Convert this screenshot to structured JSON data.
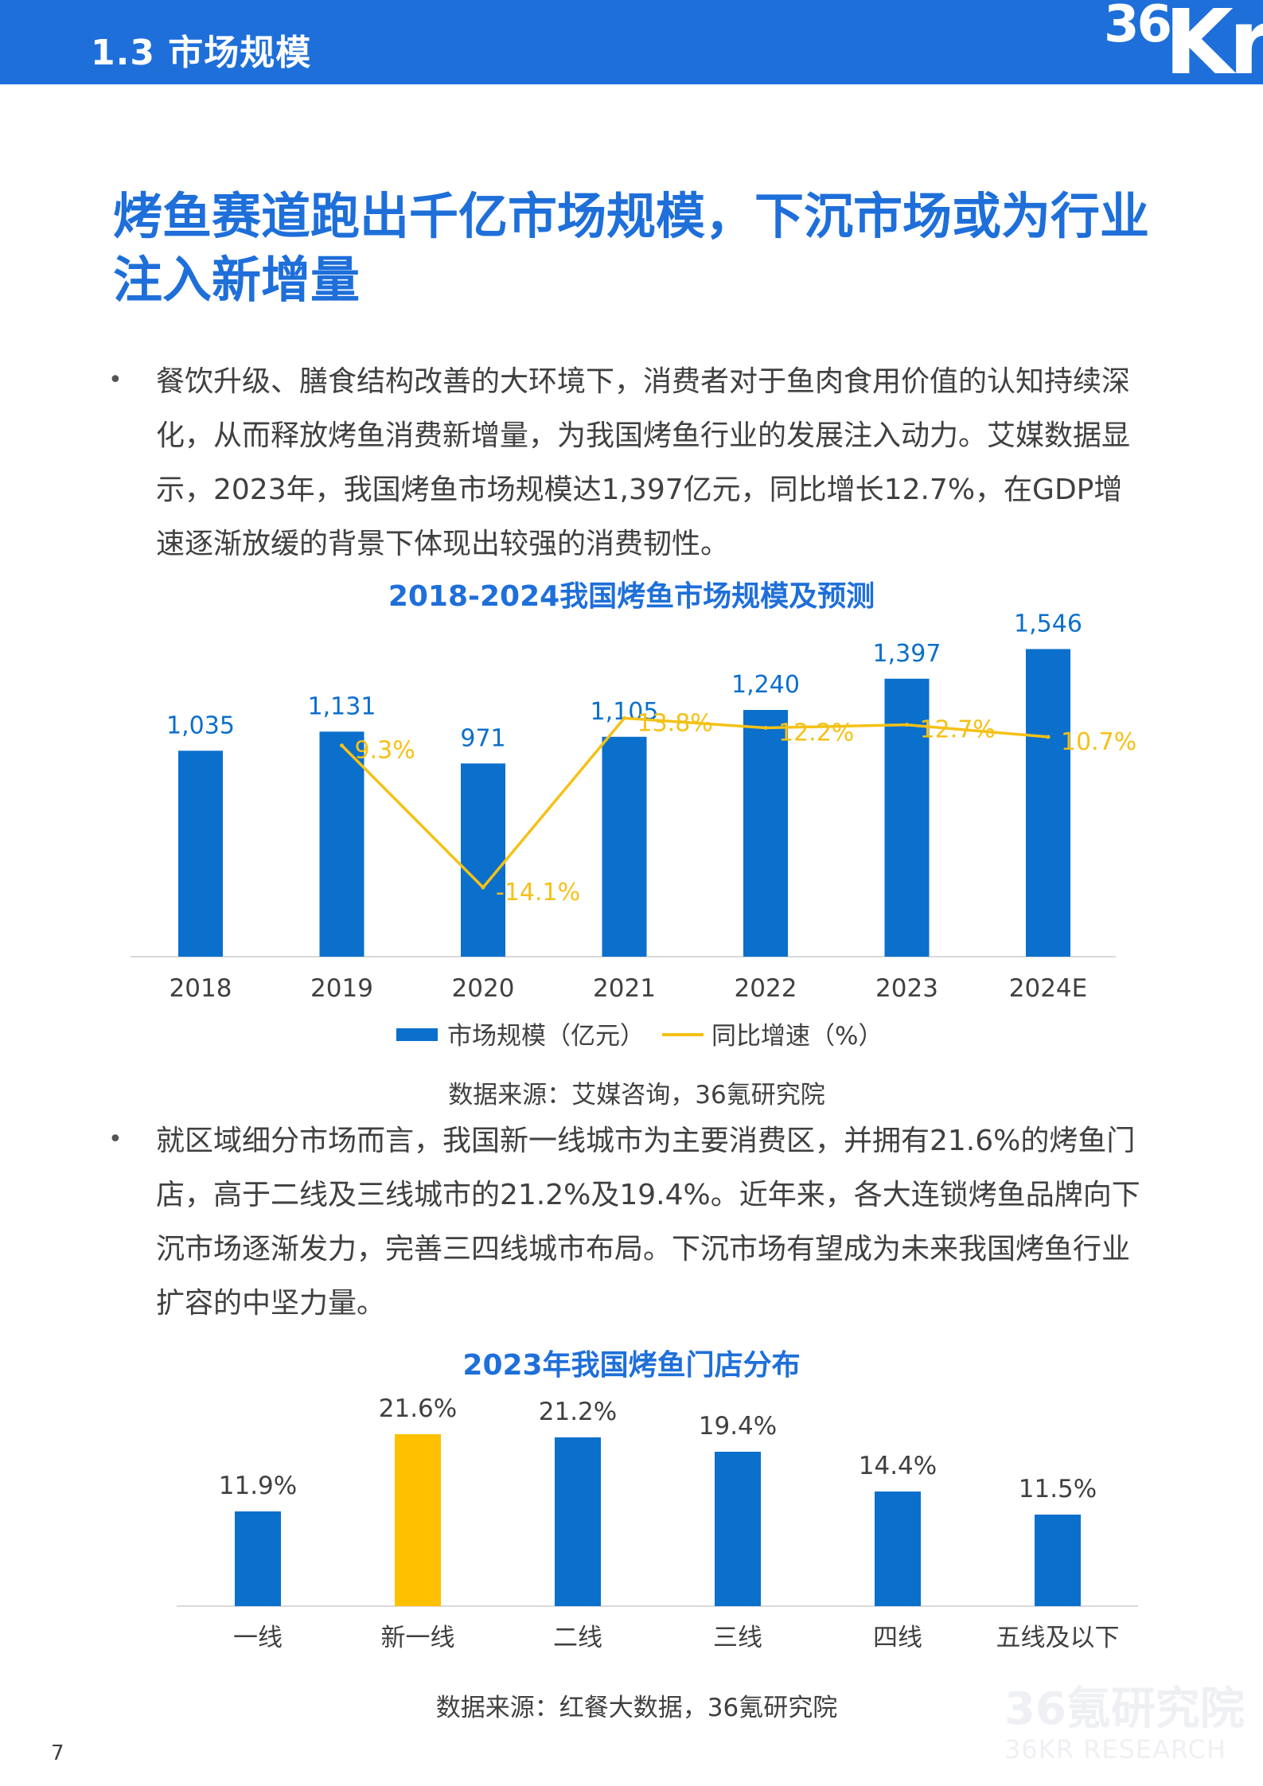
{
  "header": {
    "section_title": "1.3 市场规模",
    "logo_36": "36",
    "logo_kr": "Kr"
  },
  "headline": "烤鱼赛道跑出千亿市场规模，下沉市场或为行业注入新增量",
  "bullets": [
    "餐饮升级、膳食结构改善的大环境下，消费者对于鱼肉食用价值的认知持续深化，从而释放烤鱼消费新增量，为我国烤鱼行业的发展注入动力。艾媒数据显示，2023年，我国烤鱼市场规模达1,397亿元，同比增长12.7%，在GDP增速逐渐放缓的背景下体现出较强的消费韧性。",
    "就区域细分市场而言，我国新一线城市为主要消费区，并拥有21.6%的烤鱼门店，高于二线及三线城市的21.2%及19.4%。近年来，各大连锁烤鱼品牌向下沉市场逐渐发力，完善三四线城市布局。下沉市场有望成为未来我国烤鱼行业扩容的中坚力量。"
  ],
  "bullet_marker": "•",
  "chart_data": [
    {
      "type": "bar",
      "title": "2018-2024我国烤鱼市场规模及预测",
      "categories": [
        "2018",
        "2019",
        "2020",
        "2021",
        "2022",
        "2023",
        "2024E"
      ],
      "series": [
        {
          "name": "市场规模（亿元）",
          "type": "bar",
          "values": [
            1035,
            1131,
            971,
            1105,
            1240,
            1397,
            1546
          ],
          "labels": [
            "1,035",
            "1,131",
            "971",
            "1,105",
            "1,240",
            "1,397",
            "1,546"
          ]
        },
        {
          "name": "同比增速（%）",
          "type": "line",
          "values": [
            null,
            9.3,
            -14.1,
            13.8,
            12.2,
            12.7,
            10.7
          ],
          "labels": [
            "",
            "9.3%",
            "-14.1%",
            "13.8%",
            "12.2%",
            "12.7%",
            "10.7%"
          ]
        }
      ],
      "ylim": [
        0,
        1600
      ],
      "y2lim": [
        -20,
        20
      ],
      "colors": {
        "bar": "#0b6fcc",
        "line": "#f5c116"
      },
      "legend": "bottom",
      "source": "数据来源：艾媒咨询，36氪研究院"
    },
    {
      "type": "bar",
      "title": "2023年我国烤鱼门店分布",
      "categories": [
        "一线",
        "新一线",
        "二线",
        "三线",
        "四线",
        "五线及以下"
      ],
      "values": [
        11.9,
        21.6,
        21.2,
        19.4,
        14.4,
        11.5
      ],
      "labels": [
        "11.9%",
        "21.6%",
        "21.2%",
        "19.4%",
        "14.4%",
        "11.5%"
      ],
      "highlight_index": 1,
      "ylim": [
        0,
        25
      ],
      "colors": {
        "bar": "#0b6fcc",
        "highlight": "#ffc000"
      },
      "source": "数据来源：红餐大数据，36氪研究院"
    }
  ],
  "page_number": "7",
  "watermark": {
    "line1": "36氪研究院",
    "line2": "36KR RESEARCH"
  }
}
